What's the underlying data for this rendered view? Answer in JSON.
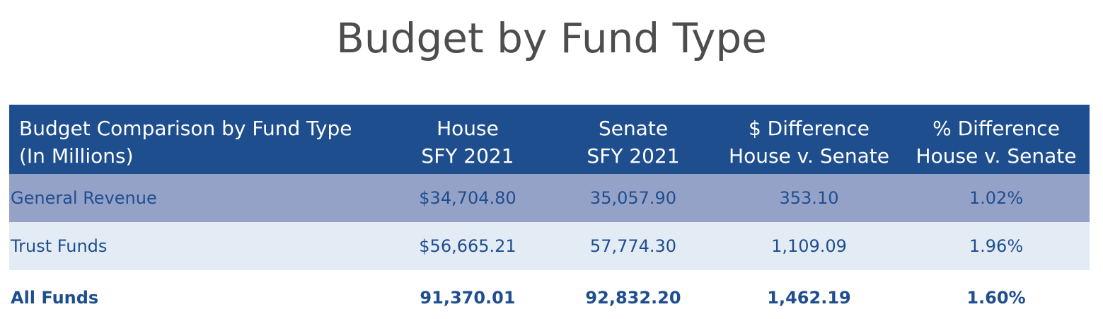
{
  "page": {
    "title": "Budget by Fund Type"
  },
  "table": {
    "headers": [
      "Budget Comparison by Fund Type\n(In Millions)",
      "House\nSFY 2021",
      "Senate\nSFY 2021",
      "$ Difference\nHouse v. Senate",
      "% Difference\nHouse v. Senate"
    ],
    "rows": [
      {
        "label": "General Revenue",
        "house": "$34,704.80",
        "senate": "35,057.90",
        "diff_dollar": "353.10",
        "diff_pct": "1.02%"
      },
      {
        "label": "Trust Funds",
        "house": "$56,665.21",
        "senate": "57,774.30",
        "diff_dollar": "1,109.09",
        "diff_pct": "1.96%"
      }
    ],
    "total": {
      "label": "All Funds",
      "house": "91,370.01",
      "senate": "92,832.20",
      "diff_dollar": "1,462.19",
      "diff_pct": "1.60%"
    }
  },
  "colors": {
    "header_bg": "#1f4e8f",
    "row1_bg": "#95a2c7",
    "row2_bg": "#e3ebf5",
    "text_blue": "#1f4e8f",
    "title_gray": "#4d4d4d"
  }
}
